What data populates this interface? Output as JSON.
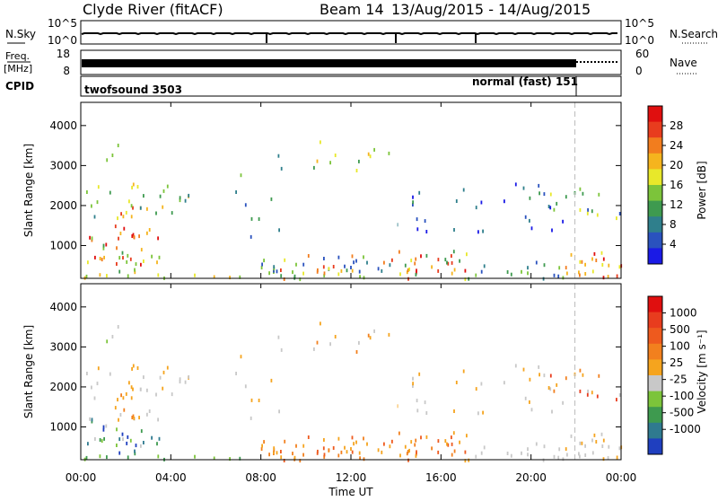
{
  "header": {
    "station": "Clyde River (fitACF)",
    "beam": "Beam 14",
    "date_range": "13/Aug/2015 - 14/Aug/2015"
  },
  "panels": {
    "nsky": {
      "left_label": "N.Sky",
      "right_label": "N.Search",
      "left_ticks": [
        "10^5",
        "10^0"
      ],
      "right_ticks": [
        "10^5",
        "10^0"
      ]
    },
    "freq": {
      "left_label_1": "Freq.",
      "left_label_2": "[MHz]",
      "right_label": "Nave",
      "left_ticks": [
        "18",
        "8"
      ],
      "right_ticks": [
        "60",
        "0"
      ]
    },
    "cpid": {
      "label": "CPID",
      "modes": [
        {
          "name": "twofsound 3503"
        },
        {
          "name": "normal (fast) 151"
        }
      ]
    }
  },
  "chart_data": [
    {
      "type": "heatmap",
      "title": "",
      "ylabel": "Slant Range [km]",
      "xlabel": "",
      "x_ticks": [
        "00:00",
        "04:00",
        "08:00",
        "12:00",
        "16:00",
        "20:00",
        "00:00"
      ],
      "y_ticks": [
        "1000",
        "2000",
        "3000",
        "4000"
      ],
      "ylim": [
        180,
        4580
      ],
      "xlim_hours": [
        0,
        24
      ],
      "colorbar": {
        "label": "Power [dB]",
        "ticks": [
          "4",
          "8",
          "12",
          "16",
          "20",
          "24",
          "28"
        ],
        "colors": [
          "#1a1ae6",
          "#2a52be",
          "#2f7f8c",
          "#3e9a4f",
          "#7cc43a",
          "#e8e82a",
          "#f5b41e",
          "#f27d1e",
          "#e83c1e",
          "#e00f0f"
        ]
      }
    },
    {
      "type": "heatmap",
      "title": "",
      "ylabel": "Slant Range [km]",
      "xlabel": "Time UT",
      "x_ticks": [
        "00:00",
        "04:00",
        "08:00",
        "12:00",
        "16:00",
        "20:00",
        "00:00"
      ],
      "y_ticks": [
        "1000",
        "2000",
        "3000",
        "4000"
      ],
      "ylim": [
        180,
        4580
      ],
      "xlim_hours": [
        0,
        24
      ],
      "colorbar": {
        "label": "Velocity [m s⁻¹]",
        "ticks": [
          "1000",
          "500",
          "100",
          "25",
          "-25",
          "-100",
          "-500",
          "-1000"
        ],
        "colors": [
          "#1f3fbf",
          "#2f7a8f",
          "#3e9a4f",
          "#7cc43a",
          "#c8c8c8",
          "#f5a41e",
          "#f2801e",
          "#ee5a1e",
          "#e83c1e",
          "#e00f0f"
        ]
      }
    }
  ]
}
